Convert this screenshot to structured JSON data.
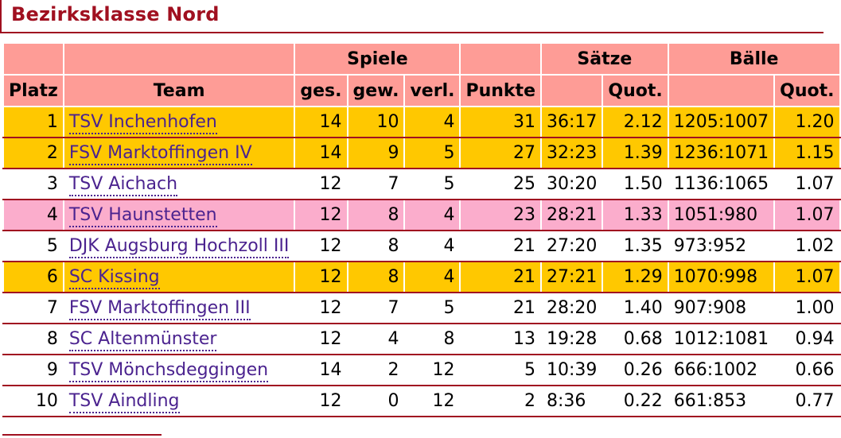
{
  "title": "Bezirksklasse Nord",
  "headers": {
    "platz": "Platz",
    "team": "Team",
    "spiele": "Spiele",
    "ges": "ges.",
    "gew": "gew.",
    "verl": "verl.",
    "punkte": "Punkte",
    "saetze": "Sätze",
    "saetze_quot": "Quot.",
    "baelle": "Bälle",
    "baelle_quot": "Quot."
  },
  "colors": {
    "gold": "#ffc800",
    "pink": "#fbadcc",
    "header": "#fe9c96",
    "accent": "#a01020",
    "link": "#4b238f"
  },
  "rows": [
    {
      "platz": "1",
      "team": "TSV Inchenhofen",
      "ges": "14",
      "gew": "10",
      "verl": "4",
      "punkte": "31",
      "saetze": "36:17",
      "saetze_quot": "2.12",
      "baelle": "1205:1007",
      "baelle_quot": "1.20",
      "highlight": "gold"
    },
    {
      "platz": "2",
      "team": "FSV Marktoffingen IV",
      "ges": "14",
      "gew": "9",
      "verl": "5",
      "punkte": "27",
      "saetze": "32:23",
      "saetze_quot": "1.39",
      "baelle": "1236:1071",
      "baelle_quot": "1.15",
      "highlight": "gold"
    },
    {
      "platz": "3",
      "team": "TSV Aichach",
      "ges": "12",
      "gew": "7",
      "verl": "5",
      "punkte": "25",
      "saetze": "30:20",
      "saetze_quot": "1.50",
      "baelle": "1136:1065",
      "baelle_quot": "1.07",
      "highlight": "white"
    },
    {
      "platz": "4",
      "team": "TSV Haunstetten",
      "ges": "12",
      "gew": "8",
      "verl": "4",
      "punkte": "23",
      "saetze": "28:21",
      "saetze_quot": "1.33",
      "baelle": "1051:980",
      "baelle_quot": "1.07",
      "highlight": "pink"
    },
    {
      "platz": "5",
      "team": "DJK Augsburg Hochzoll III",
      "ges": "12",
      "gew": "8",
      "verl": "4",
      "punkte": "21",
      "saetze": "27:20",
      "saetze_quot": "1.35",
      "baelle": "973:952",
      "baelle_quot": "1.02",
      "highlight": "white"
    },
    {
      "platz": "6",
      "team": "SC Kissing",
      "ges": "12",
      "gew": "8",
      "verl": "4",
      "punkte": "21",
      "saetze": "27:21",
      "saetze_quot": "1.29",
      "baelle": "1070:998",
      "baelle_quot": "1.07",
      "highlight": "gold"
    },
    {
      "platz": "7",
      "team": "FSV Marktoffingen III",
      "ges": "12",
      "gew": "7",
      "verl": "5",
      "punkte": "21",
      "saetze": "28:20",
      "saetze_quot": "1.40",
      "baelle": "907:908",
      "baelle_quot": "1.00",
      "highlight": "white"
    },
    {
      "platz": "8",
      "team": "SC Altenmünster",
      "ges": "12",
      "gew": "4",
      "verl": "8",
      "punkte": "13",
      "saetze": "19:28",
      "saetze_quot": "0.68",
      "baelle": "1012:1081",
      "baelle_quot": "0.94",
      "highlight": "white"
    },
    {
      "platz": "9",
      "team": "TSV Mönchsdeggingen",
      "ges": "14",
      "gew": "2",
      "verl": "12",
      "punkte": "5",
      "saetze": "10:39",
      "saetze_quot": "0.26",
      "baelle": "666:1002",
      "baelle_quot": "0.66",
      "highlight": "white"
    },
    {
      "platz": "10",
      "team": "TSV Aindling",
      "ges": "12",
      "gew": "0",
      "verl": "12",
      "punkte": "2",
      "saetze": "8:36",
      "saetze_quot": "0.22",
      "baelle": "661:853",
      "baelle_quot": "0.77",
      "highlight": "white"
    }
  ]
}
